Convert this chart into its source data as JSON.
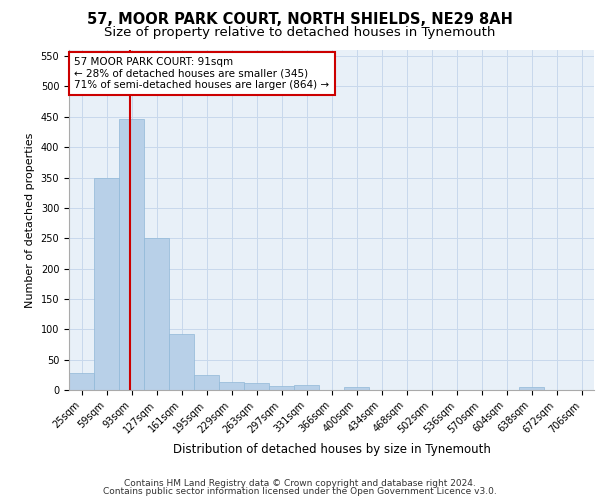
{
  "title1": "57, MOOR PARK COURT, NORTH SHIELDS, NE29 8AH",
  "title2": "Size of property relative to detached houses in Tynemouth",
  "xlabel": "Distribution of detached houses by size in Tynemouth",
  "ylabel": "Number of detached properties",
  "bin_labels": [
    "25sqm",
    "59sqm",
    "93sqm",
    "127sqm",
    "161sqm",
    "195sqm",
    "229sqm",
    "263sqm",
    "297sqm",
    "331sqm",
    "366sqm",
    "400sqm",
    "434sqm",
    "468sqm",
    "502sqm",
    "536sqm",
    "570sqm",
    "604sqm",
    "638sqm",
    "672sqm",
    "706sqm"
  ],
  "bar_heights": [
    28,
    350,
    447,
    250,
    93,
    25,
    14,
    12,
    6,
    8,
    0,
    5,
    0,
    0,
    0,
    0,
    0,
    0,
    5,
    0,
    0
  ],
  "bar_color": "#b8d0e8",
  "bar_edge_color": "#90b8d8",
  "grid_color": "#c8d8ec",
  "background_color": "#e8f0f8",
  "vline_x": 1.94,
  "vline_color": "#cc0000",
  "annotation_line1": "57 MOOR PARK COURT: 91sqm",
  "annotation_line2": "← 28% of detached houses are smaller (345)",
  "annotation_line3": "71% of semi-detached houses are larger (864) →",
  "annotation_box_color": "#ffffff",
  "annotation_box_edge": "#cc0000",
  "ylim": [
    0,
    560
  ],
  "yticks": [
    0,
    50,
    100,
    150,
    200,
    250,
    300,
    350,
    400,
    450,
    500,
    550
  ],
  "footer_line1": "Contains HM Land Registry data © Crown copyright and database right 2024.",
  "footer_line2": "Contains public sector information licensed under the Open Government Licence v3.0.",
  "title1_fontsize": 10.5,
  "title2_fontsize": 9.5,
  "xlabel_fontsize": 8.5,
  "ylabel_fontsize": 8,
  "tick_fontsize": 7,
  "annotation_fontsize": 7.5,
  "footer_fontsize": 6.5
}
